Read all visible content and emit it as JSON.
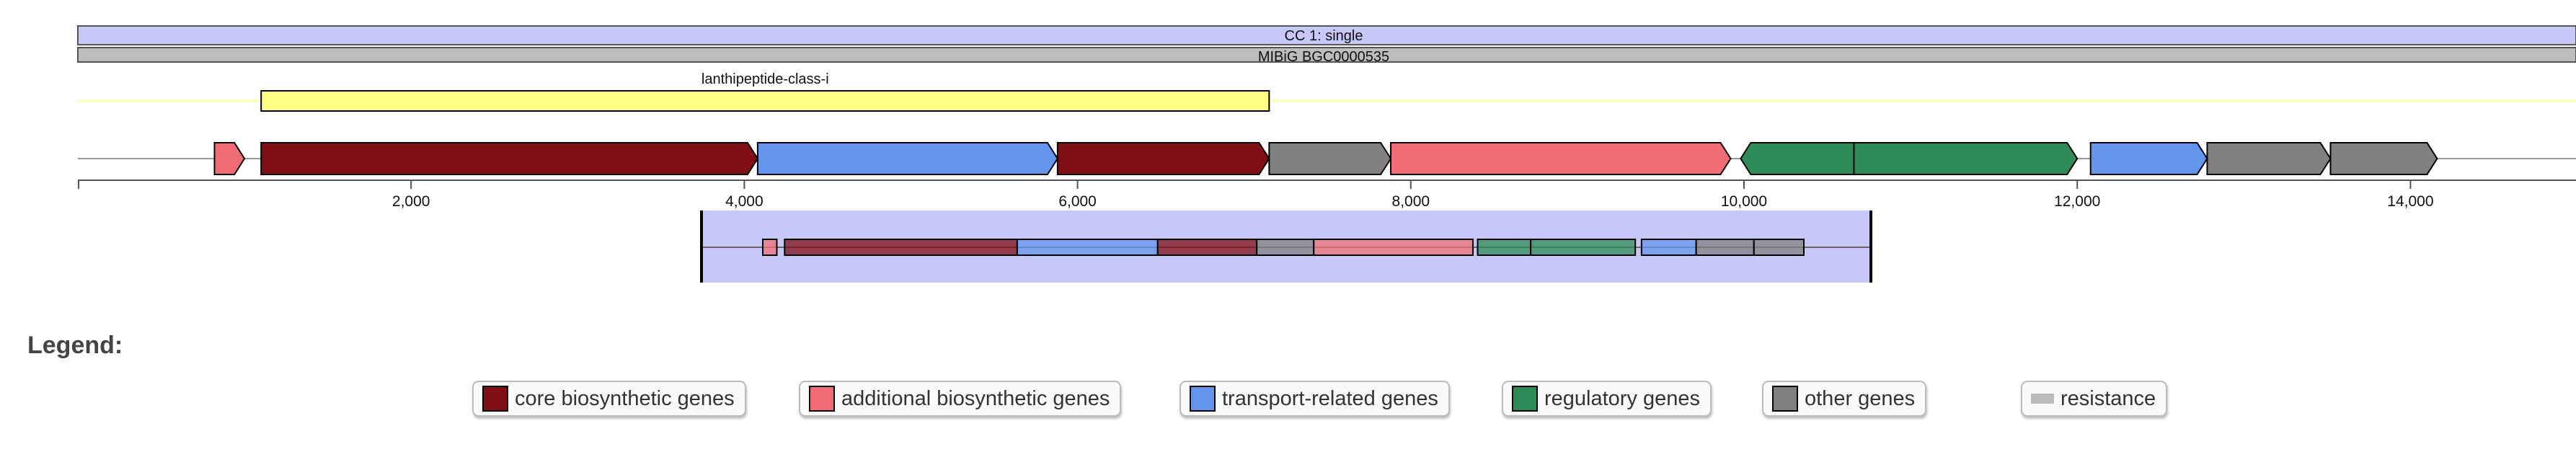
{
  "protocluster_bar": {
    "label": "CC 1: single",
    "color": "#c8c8f8"
  },
  "reference_bar": {
    "label": "MIBiG BGC0000535",
    "color": "#bdbdbd"
  },
  "candidate": {
    "label": "lanthipeptide-class-i",
    "color": "#ffff88",
    "track_color": "#ffffc0",
    "start": 1100,
    "end": 7150
  },
  "region": {
    "start": 0,
    "end": 15000
  },
  "axis": {
    "ticks": [
      {
        "value": 2000,
        "label": "2,000"
      },
      {
        "value": 4000,
        "label": "4,000"
      },
      {
        "value": 6000,
        "label": "6,000"
      },
      {
        "value": 8000,
        "label": "8,000"
      },
      {
        "value": 10000,
        "label": "10,000"
      },
      {
        "value": 12000,
        "label": "12,000"
      },
      {
        "value": 14000,
        "label": "14,000"
      }
    ]
  },
  "colors": {
    "core": "#810e15",
    "additional": "#f16d75",
    "transport": "#6495ed",
    "regulatory": "#2e8b57",
    "other": "#808080",
    "resistance": "#bbbbbb"
  },
  "genes": [
    {
      "start": 820,
      "end": 1000,
      "strand": 1,
      "type": "additional"
    },
    {
      "start": 1100,
      "end": 4080,
      "strand": 1,
      "type": "core"
    },
    {
      "start": 4080,
      "end": 5880,
      "strand": 1,
      "type": "transport"
    },
    {
      "start": 5880,
      "end": 7150,
      "strand": 1,
      "type": "core"
    },
    {
      "start": 7150,
      "end": 7880,
      "strand": 1,
      "type": "other"
    },
    {
      "start": 7880,
      "end": 9920,
      "strand": 1,
      "type": "additional"
    },
    {
      "start": 9980,
      "end": 10660,
      "strand": -1,
      "type": "regulatory"
    },
    {
      "start": 10660,
      "end": 12000,
      "strand": 1,
      "type": "regulatory"
    },
    {
      "start": 12080,
      "end": 12780,
      "strand": 1,
      "type": "transport"
    },
    {
      "start": 12780,
      "end": 13520,
      "strand": 1,
      "type": "other"
    },
    {
      "start": 13520,
      "end": 14160,
      "strand": 1,
      "type": "other"
    }
  ],
  "overview": {
    "background": "#c8c8f8",
    "genes": [
      {
        "start": 820,
        "end": 1000,
        "type": "additional"
      },
      {
        "start": 1100,
        "end": 4080,
        "type": "core"
      },
      {
        "start": 4080,
        "end": 5880,
        "type": "transport"
      },
      {
        "start": 5880,
        "end": 7150,
        "type": "core"
      },
      {
        "start": 7150,
        "end": 7880,
        "type": "other"
      },
      {
        "start": 7880,
        "end": 9920,
        "type": "additional"
      },
      {
        "start": 9980,
        "end": 10660,
        "type": "regulatory"
      },
      {
        "start": 10660,
        "end": 12000,
        "type": "regulatory"
      },
      {
        "start": 12080,
        "end": 12780,
        "type": "transport"
      },
      {
        "start": 12780,
        "end": 13520,
        "type": "other"
      },
      {
        "start": 13520,
        "end": 14160,
        "type": "other"
      }
    ]
  },
  "legend": {
    "heading": "Legend:",
    "items": [
      {
        "key": "core",
        "label": "core biosynthetic genes"
      },
      {
        "key": "additional",
        "label": "additional biosynthetic genes"
      },
      {
        "key": "transport",
        "label": "transport-related genes"
      },
      {
        "key": "regulatory",
        "label": "regulatory genes"
      },
      {
        "key": "other",
        "label": "other genes"
      },
      {
        "key": "resistance",
        "label": "resistance"
      }
    ]
  }
}
